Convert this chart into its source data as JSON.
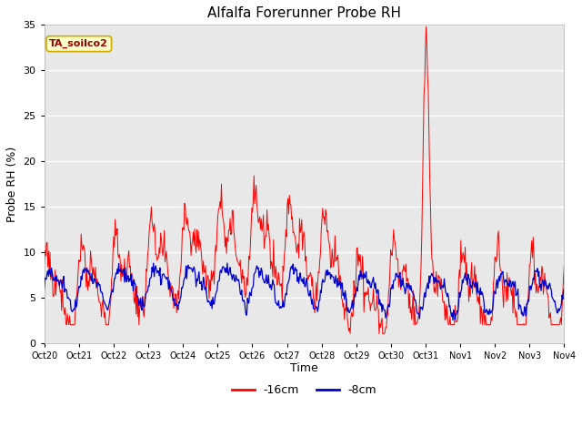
{
  "title": "Alfalfa Forerunner Probe RH",
  "ylabel": "Probe RH (%)",
  "xlabel": "Time",
  "annotation": "TA_soilco2",
  "ylim": [
    0,
    35
  ],
  "yticks": [
    0,
    5,
    10,
    15,
    20,
    25,
    30,
    35
  ],
  "x_labels": [
    "Oct 20",
    "Oct 21",
    "Oct 22",
    "Oct 23",
    "Oct 24",
    "Oct 25",
    "Oct 26",
    "Oct 27",
    "Oct 28",
    "Oct 29",
    "Oct 30",
    "Oct 31",
    "Nov 1",
    "Nov 2",
    "Nov 3",
    "Nov 4"
  ],
  "legend_labels": [
    "-16cm",
    "-8cm"
  ],
  "line_colors": [
    "#ff0000",
    "#0000cc"
  ],
  "background_color": "#e8e8e8",
  "grid_color": "#ffffff",
  "annotation_bg": "#ffffcc",
  "annotation_border": "#ccaa00",
  "annotation_color": "#990000",
  "fig_bg": "#ffffff"
}
